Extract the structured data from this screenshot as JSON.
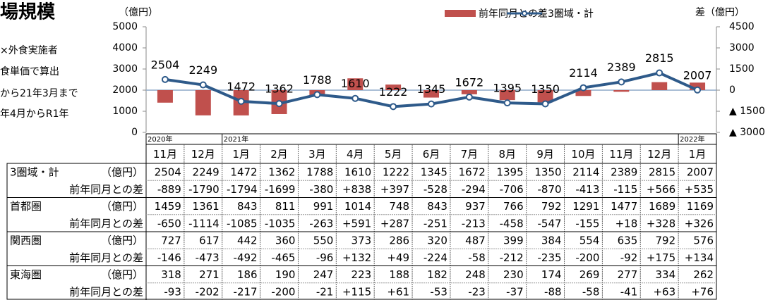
{
  "header": {
    "title": "場規模",
    "notes": [
      "×外食実施者",
      "食単価で算出",
      "から21年3月まで",
      "年4月からR1年"
    ]
  },
  "chart_data": {
    "type": "combo",
    "y_label": "（億円）",
    "y2_label": "差（億円）",
    "categories": [
      "11月",
      "12月",
      "1月",
      "2月",
      "3月",
      "4月",
      "5月",
      "6月",
      "7月",
      "8月",
      "9月",
      "10月",
      "11月",
      "12月",
      "1月"
    ],
    "ylim": [
      0,
      5000
    ],
    "yticks": [
      0,
      1000,
      2000,
      3000,
      4000,
      5000
    ],
    "y2lim": [
      -3000,
      4500
    ],
    "y2ticks": [
      {
        "value": -3000,
        "label": "▲ 3000"
      },
      {
        "value": -1500,
        "label": "▲ 1500"
      },
      0,
      1500,
      3000,
      4500
    ],
    "series": [
      {
        "name": "前年同月との差",
        "type": "bar",
        "axis": "y2",
        "color": "#c0504d",
        "values": [
          -889,
          -1790,
          -1794,
          -1699,
          -380,
          838,
          397,
          -528,
          -294,
          -706,
          -870,
          -413,
          -115,
          566,
          535
        ]
      },
      {
        "name": "3圏域・計",
        "type": "line",
        "color": "#2e5a8a",
        "values": [
          2504,
          2249,
          1472,
          1362,
          1788,
          1610,
          1222,
          1345,
          1672,
          1395,
          1350,
          2114,
          2389,
          2815,
          2007
        ]
      }
    ]
  },
  "table": {
    "years": [
      "2020年",
      null,
      "2021年",
      null,
      null,
      null,
      null,
      null,
      null,
      null,
      null,
      null,
      null,
      null,
      "2022年"
    ],
    "rows": [
      {
        "label": "3圏域・計",
        "unit": "（億円）",
        "values": [
          "2504",
          "2249",
          "1472",
          "1362",
          "1788",
          "1610",
          "1222",
          "1345",
          "1672",
          "1395",
          "1350",
          "2114",
          "2389",
          "2815",
          "2007"
        ]
      },
      {
        "label": "前年同月との差",
        "values": [
          "-889",
          "-1790",
          "-1794",
          "-1699",
          "-380",
          "+838",
          "+397",
          "-528",
          "-294",
          "-706",
          "-870",
          "-413",
          "-115",
          "+566",
          "+535"
        ]
      },
      {
        "label": "首都圏",
        "unit": "（億円）",
        "values": [
          "1459",
          "1361",
          "843",
          "811",
          "991",
          "1014",
          "748",
          "843",
          "937",
          "766",
          "792",
          "1291",
          "1477",
          "1689",
          "1169"
        ]
      },
      {
        "label": "前年同月との差",
        "values": [
          "-650",
          "-1114",
          "-1085",
          "-1035",
          "-263",
          "+591",
          "+287",
          "-251",
          "-213",
          "-458",
          "-547",
          "-155",
          "+18",
          "+328",
          "+326"
        ]
      },
      {
        "label": "関西圏",
        "unit": "（億円）",
        "values": [
          "727",
          "617",
          "442",
          "360",
          "550",
          "373",
          "286",
          "320",
          "487",
          "399",
          "384",
          "554",
          "635",
          "792",
          "576"
        ]
      },
      {
        "label": "前年同月との差",
        "values": [
          "-146",
          "-473",
          "-492",
          "-465",
          "-96",
          "+132",
          "+49",
          "-224",
          "-58",
          "-212",
          "-235",
          "-200",
          "-92",
          "+175",
          "+134"
        ]
      },
      {
        "label": "東海圏",
        "unit": "（億円）",
        "values": [
          "318",
          "271",
          "186",
          "190",
          "247",
          "223",
          "188",
          "182",
          "248",
          "230",
          "174",
          "269",
          "277",
          "334",
          "262"
        ]
      },
      {
        "label": "前年同月との差",
        "values": [
          "-93",
          "-202",
          "-217",
          "-200",
          "-21",
          "+115",
          "+61",
          "-53",
          "-23",
          "-37",
          "-88",
          "-58",
          "-41",
          "+63",
          "+76"
        ]
      }
    ]
  }
}
